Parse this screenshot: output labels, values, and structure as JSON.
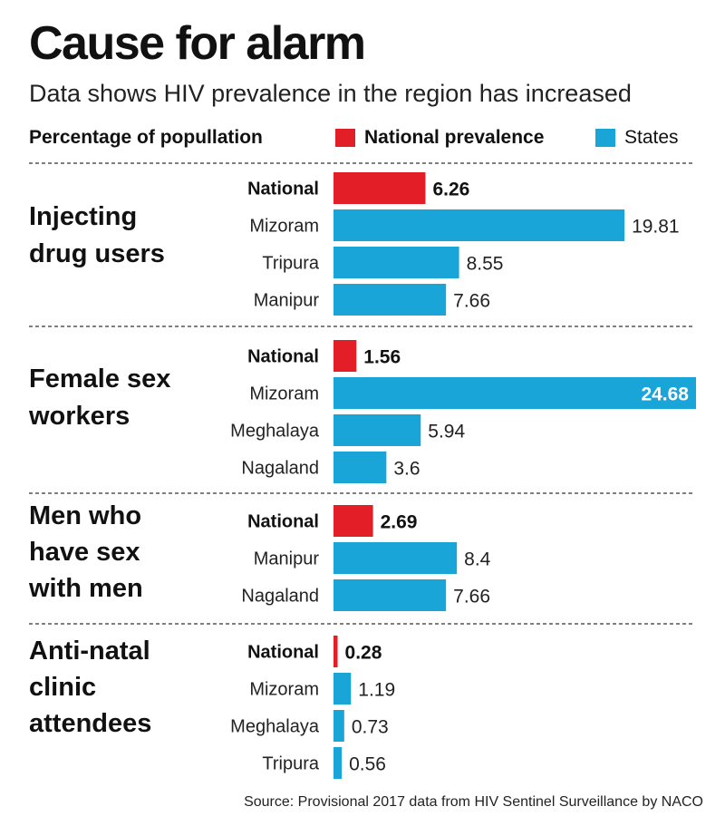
{
  "title": "Cause for alarm",
  "subtitle": "Data shows HIV prevalence in the region has increased",
  "source": "Source: Provisional 2017 data from HIV Sentinel Surveillance by NACO",
  "legend": {
    "units_label": "Percentage of popullation",
    "national": {
      "label": "National prevalence",
      "color": "#e31e26"
    },
    "states": {
      "label": "States",
      "color": "#1aa5d9"
    }
  },
  "chart_data": {
    "type": "bar",
    "orientation": "horizontal",
    "groups": [
      {
        "name": "Injecting drug users",
        "bars": [
          {
            "label": "National",
            "value": 6.26,
            "series": "National prevalence"
          },
          {
            "label": "Mizoram",
            "value": 19.81,
            "series": "States"
          },
          {
            "label": "Tripura",
            "value": 8.55,
            "series": "States"
          },
          {
            "label": "Manipur",
            "value": 7.66,
            "series": "States"
          }
        ]
      },
      {
        "name": "Female sex workers",
        "bars": [
          {
            "label": "National",
            "value": 1.56,
            "series": "National prevalence"
          },
          {
            "label": "Mizoram",
            "value": 24.68,
            "series": "States"
          },
          {
            "label": "Meghalaya",
            "value": 5.94,
            "series": "States"
          },
          {
            "label": "Nagaland",
            "value": 3.6,
            "series": "States"
          }
        ]
      },
      {
        "name": "Men who have sex with men",
        "bars": [
          {
            "label": "National",
            "value": 2.69,
            "series": "National prevalence"
          },
          {
            "label": "Manipur",
            "value": 8.4,
            "series": "States"
          },
          {
            "label": "Nagaland",
            "value": 7.66,
            "series": "States"
          }
        ]
      },
      {
        "name": "Anti-natal clinic attendees",
        "bars": [
          {
            "label": "National",
            "value": 0.28,
            "series": "National prevalence"
          },
          {
            "label": "Mizoram",
            "value": 1.19,
            "series": "States"
          },
          {
            "label": "Meghalaya",
            "value": 0.73,
            "series": "States"
          },
          {
            "label": "Tripura",
            "value": 0.56,
            "series": "States"
          }
        ]
      }
    ],
    "xlim": [
      0,
      24.68
    ],
    "grid": false,
    "legend_position": "top"
  }
}
